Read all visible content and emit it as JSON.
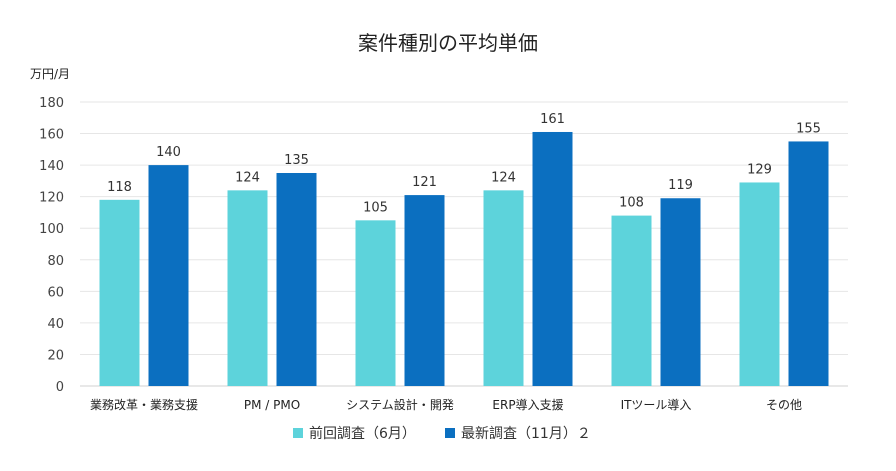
{
  "chart_data": {
    "type": "bar",
    "title": "案件種別の平均単価",
    "ylabel": "万円/月",
    "xlabel": "",
    "ylim": [
      0,
      180
    ],
    "yticks": [
      0,
      20,
      40,
      60,
      80,
      100,
      120,
      140,
      160,
      180
    ],
    "grid": true,
    "legend_position": "bottom",
    "categories": [
      "業務改革・業務支援",
      "PM / PMO",
      "システム設計・開発",
      "ERP導入支援",
      "ITツール導入",
      "その他"
    ],
    "series": [
      {
        "name": "前回調査（6月）",
        "color": "#5dd3db",
        "values": [
          118,
          124,
          105,
          124,
          108,
          129
        ]
      },
      {
        "name": "最新調査（11月）２",
        "color": "#0b6fc0",
        "values": [
          140,
          135,
          121,
          161,
          119,
          155
        ]
      }
    ]
  }
}
